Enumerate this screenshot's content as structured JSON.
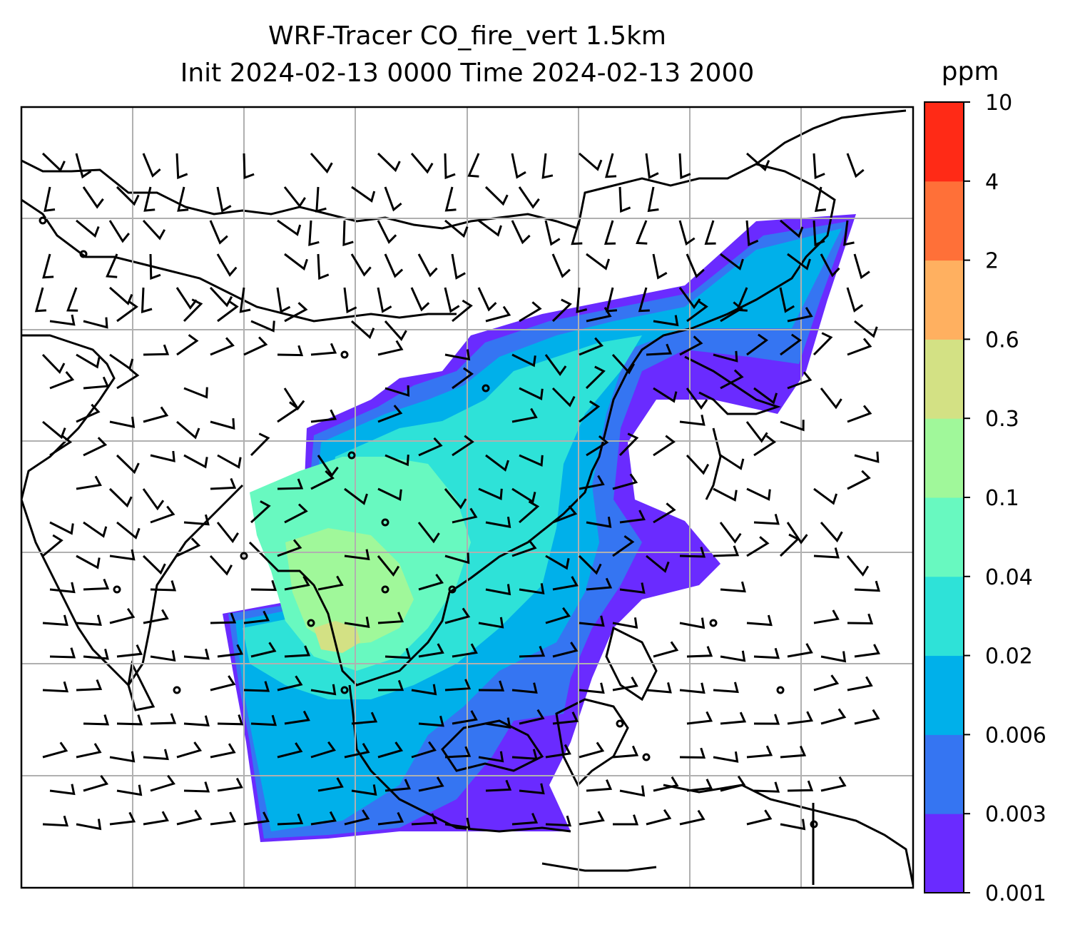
{
  "title": "WRF-Tracer CO_fire_vert 1.5km",
  "subtitle": "Init 2024-02-13 0000 Time 2024-02-13 2000",
  "colorbar": {
    "unit": "ppm",
    "levels": [
      "0.001",
      "0.003",
      "0.006",
      "0.02",
      "0.04",
      "0.1",
      "0.3",
      "0.6",
      "2",
      "4",
      "10"
    ],
    "colors": [
      "#6a2bff",
      "#3575f2",
      "#00b0ea",
      "#2ee2d8",
      "#68f9c0",
      "#a0f89a",
      "#d3e184",
      "#ffb060",
      "#ff7038",
      "#ff2a16"
    ]
  },
  "map": {
    "frame": "map-frame",
    "gridlines": true,
    "wind_barbs": true
  }
}
